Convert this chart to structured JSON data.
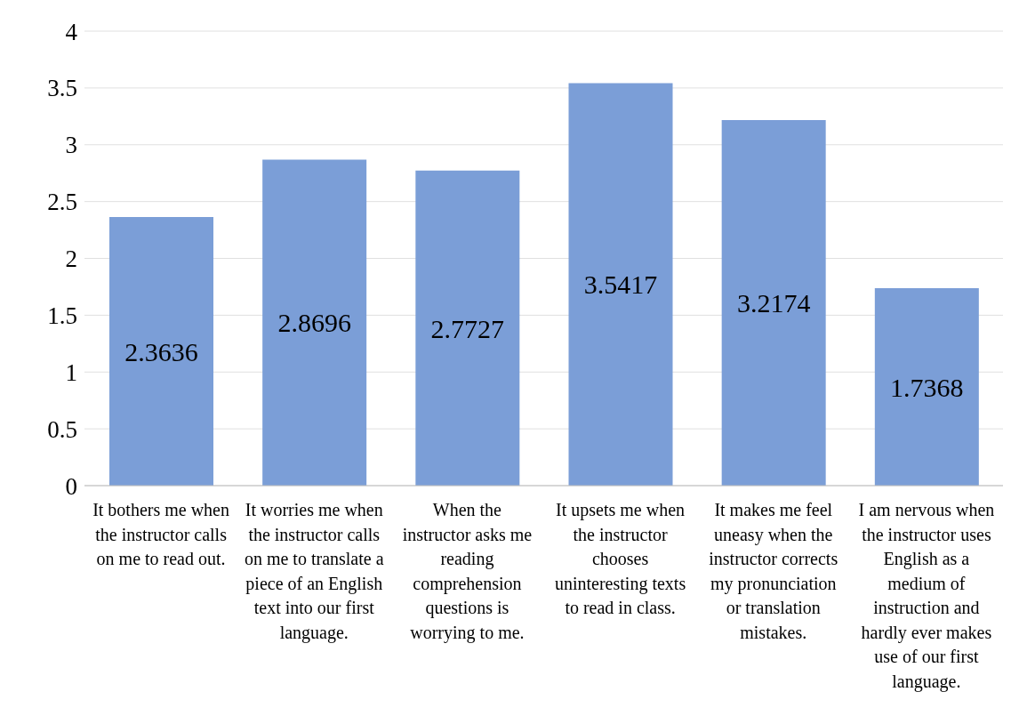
{
  "chart_data": {
    "type": "bar",
    "categories": [
      "It bothers me when the instructor calls on me to read out.",
      "It worries me when the instructor calls on me to translate a piece of an English text into our first language.",
      "When the instructor asks me reading comprehension questions is worrying to me.",
      "It upsets me when the instructor chooses uninteresting texts to read in class.",
      "It makes me feel uneasy when the instructor corrects my pronunciation or translation mistakes.",
      "I am nervous when the instructor uses English as a medium of instruction and hardly ever makes use of our first language."
    ],
    "values": [
      2.3636,
      2.8696,
      2.7727,
      3.5417,
      3.2174,
      1.7368
    ],
    "color": "#7b9ed7",
    "ylim": [
      0,
      4
    ],
    "yticks": [
      0,
      0.5,
      1,
      1.5,
      2,
      2.5,
      3,
      3.5,
      4
    ],
    "grid": "y",
    "data_labels": true
  }
}
